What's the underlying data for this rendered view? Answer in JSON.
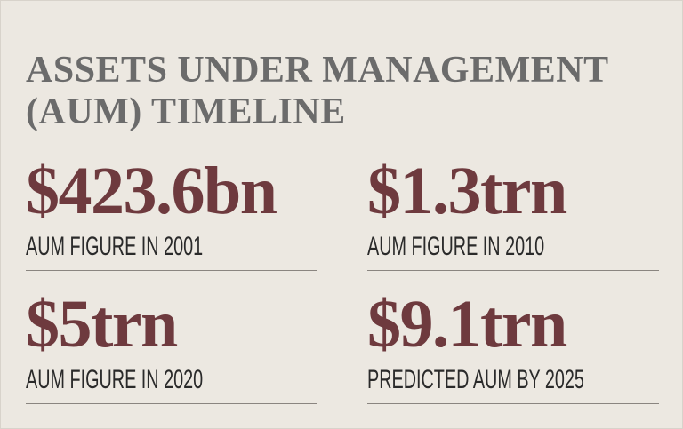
{
  "title_lines": [
    "ASSETS UNDER MANAGEMENT",
    "(AUM) TIMELINE"
  ],
  "figures": [
    {
      "value": "$423.6bn",
      "label": "AUM FIGURE IN 2001"
    },
    {
      "value": "$1.3trn",
      "label": "AUM FIGURE IN 2010"
    },
    {
      "value": "$5trn",
      "label": "AUM FIGURE IN 2020"
    },
    {
      "value": "$9.1trn",
      "label": "PREDICTED AUM BY 2025"
    }
  ]
}
